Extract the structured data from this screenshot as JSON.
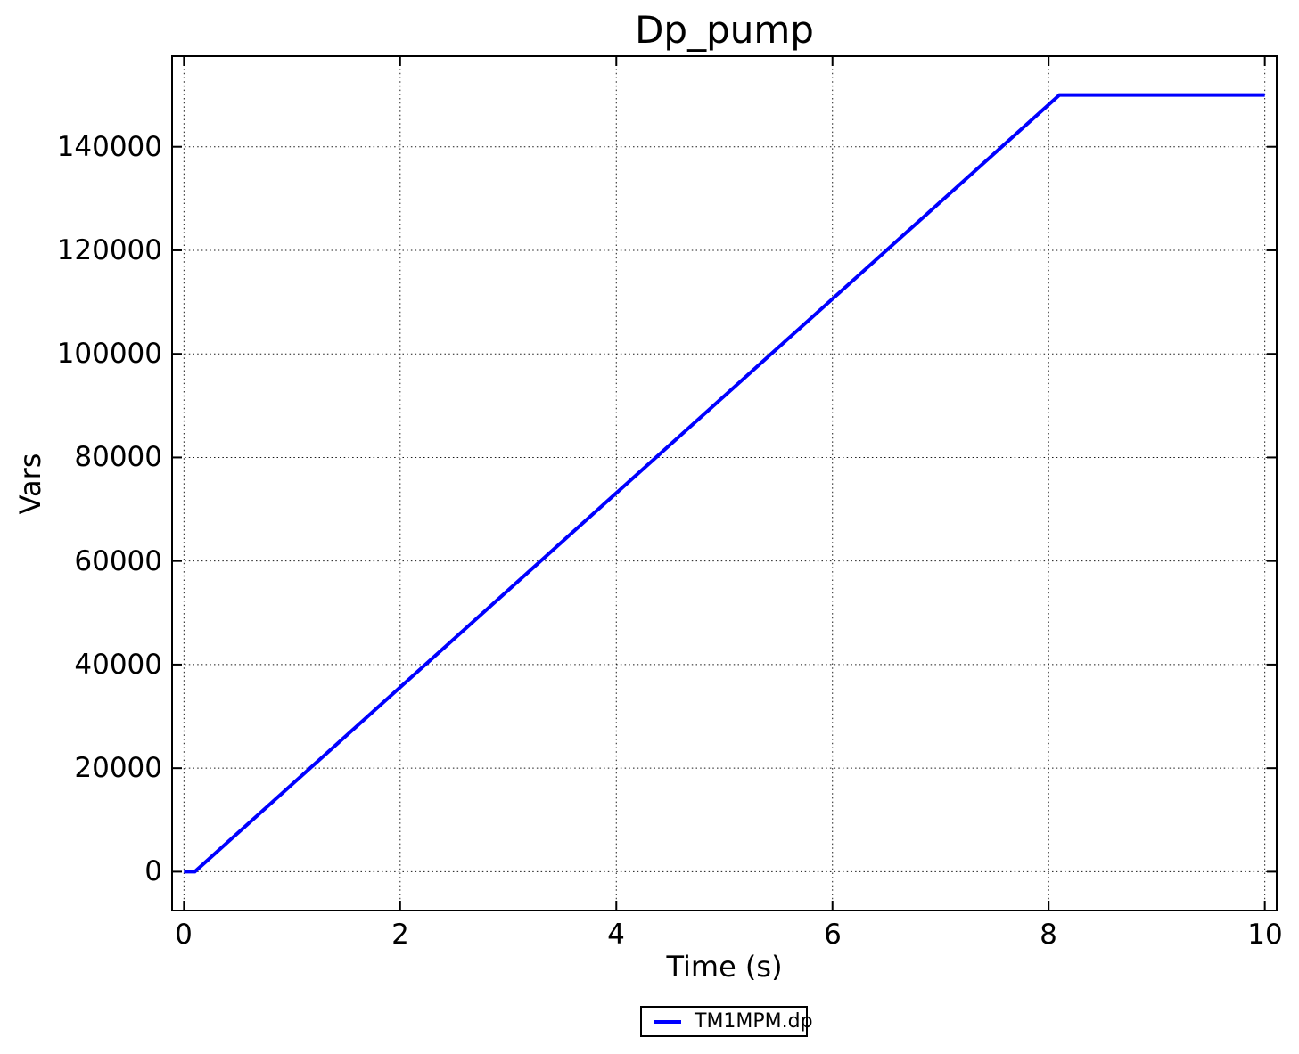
{
  "figure": {
    "background_color": "#ffffff",
    "text_color": "#000000",
    "spine_color": "#000000",
    "grid_style": "dotted"
  },
  "chart_data": {
    "type": "line",
    "title": "Dp_pump",
    "xlabel": "Time (s)",
    "ylabel": "Vars",
    "xlim": [
      -0.11,
      10.11
    ],
    "ylim": [
      -7500,
      157500
    ],
    "x_ticks": [
      0,
      2,
      4,
      6,
      8,
      10
    ],
    "y_ticks": [
      0,
      20000,
      40000,
      60000,
      80000,
      100000,
      120000,
      140000
    ],
    "grid": "on",
    "legend_position": "bottom-center-outside",
    "series": [
      {
        "name": "TM1MPM.dp",
        "color": "#0000ff",
        "line_width": 4,
        "points": [
          [
            0,
            0
          ],
          [
            0.1,
            0
          ],
          [
            8.1,
            150000
          ],
          [
            10,
            150000
          ]
        ]
      }
    ]
  }
}
